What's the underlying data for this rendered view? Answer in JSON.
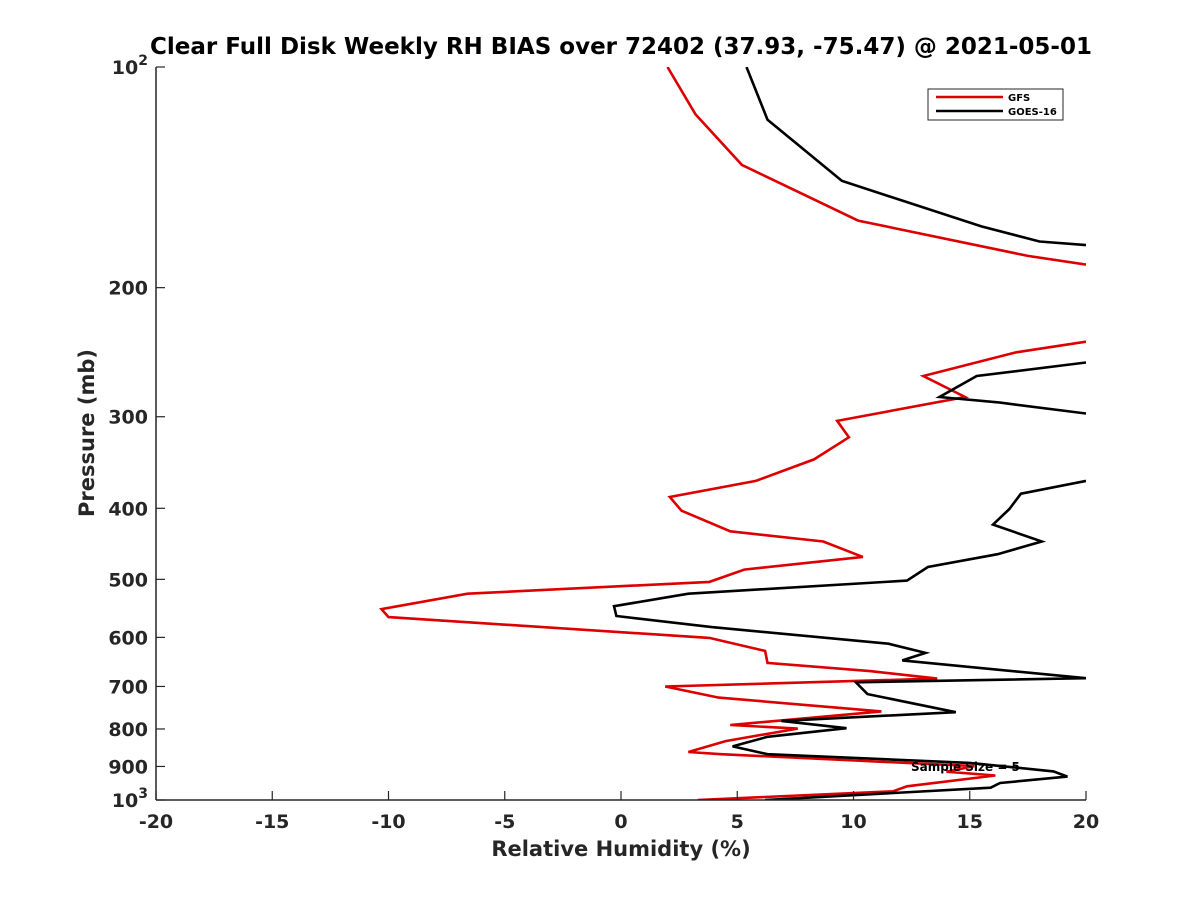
{
  "chart_data": {
    "type": "line",
    "title": "Clear Full Disk Weekly RH BIAS over 72402 (37.93, -75.47) @ 2021-05-01",
    "xlabel": "Relative Humidity (%)",
    "ylabel": "Pressure (mb)",
    "xlim": [
      -20,
      20
    ],
    "ylim": [
      100,
      1000
    ],
    "yscale": "log",
    "y_reversed": true,
    "grid": false,
    "legend_position": "top-right",
    "x_ticks": [
      "-20",
      "-15",
      "-10",
      "-5",
      "0",
      "5",
      "10",
      "15",
      "20"
    ],
    "y_ticks": [
      {
        "value": 100,
        "base": "10",
        "exp": "2"
      },
      {
        "value": 200,
        "label": "200"
      },
      {
        "value": 300,
        "label": "300"
      },
      {
        "value": 400,
        "label": "400"
      },
      {
        "value": 500,
        "label": "500"
      },
      {
        "value": 600,
        "label": "600"
      },
      {
        "value": 700,
        "label": "700"
      },
      {
        "value": 800,
        "label": "800"
      },
      {
        "value": 900,
        "label": "900"
      },
      {
        "value": 1000,
        "base": "10",
        "exp": "3"
      }
    ],
    "annotation": "Sample Size = 5",
    "series": [
      {
        "name": "GFS",
        "color": "#dd0000",
        "points": [
          [
            2.0,
            100
          ],
          [
            3.2,
            116
          ],
          [
            5.2,
            136
          ],
          [
            10.2,
            162
          ],
          [
            17.5,
            181
          ],
          [
            20,
            186
          ],
          [
            null,
            null
          ],
          [
            20,
            237
          ],
          [
            17.0,
            245
          ],
          [
            13.0,
            264
          ],
          [
            14.8,
            282
          ],
          [
            9.3,
            304
          ],
          [
            9.8,
            320
          ],
          [
            8.3,
            343
          ],
          [
            5.8,
            367
          ],
          [
            2.1,
            386
          ],
          [
            2.6,
            403
          ],
          [
            4.7,
            430
          ],
          [
            8.7,
            444
          ],
          [
            10.4,
            466
          ],
          [
            5.3,
            485
          ],
          [
            3.8,
            504
          ],
          [
            -6.6,
            523
          ],
          [
            -10.3,
            549
          ],
          [
            -10.0,
            563
          ],
          [
            3.8,
            601
          ],
          [
            6.2,
            626
          ],
          [
            6.3,
            650
          ],
          [
            10.7,
            667
          ],
          [
            13.6,
            683
          ],
          [
            1.9,
            700
          ],
          [
            4.2,
            725
          ],
          [
            11.2,
            757
          ],
          [
            4.7,
            790
          ],
          [
            7.6,
            799
          ],
          [
            4.5,
            831
          ],
          [
            2.9,
            860
          ],
          [
            4.3,
            866
          ],
          [
            15.2,
            899
          ],
          [
            14.0,
            915
          ],
          [
            16.1,
            926
          ],
          [
            12.3,
            958
          ],
          [
            11.7,
            973
          ],
          [
            3.3,
            1000
          ]
        ]
      },
      {
        "name": "GOES-16",
        "color": "#000000",
        "points": [
          [
            5.4,
            100
          ],
          [
            6.3,
            118
          ],
          [
            9.5,
            143
          ],
          [
            15.5,
            165
          ],
          [
            18.0,
            173
          ],
          [
            20,
            175
          ],
          [
            null,
            null
          ],
          [
            20,
            253
          ],
          [
            15.3,
            264
          ],
          [
            13.7,
            282
          ],
          [
            16.3,
            287
          ],
          [
            20,
            297
          ],
          [
            null,
            null
          ],
          [
            20,
            367
          ],
          [
            17.2,
            382
          ],
          [
            16.7,
            401
          ],
          [
            16.0,
            421
          ],
          [
            18.1,
            444
          ],
          [
            16.2,
            462
          ],
          [
            13.2,
            481
          ],
          [
            12.3,
            502
          ],
          [
            2.9,
            523
          ],
          [
            -0.3,
            544
          ],
          [
            -0.2,
            561
          ],
          [
            3.9,
            581
          ],
          [
            11.5,
            612
          ],
          [
            13.1,
            630
          ],
          [
            12.1,
            645
          ],
          [
            20,
            682
          ],
          [
            10.1,
            691
          ],
          [
            10.6,
            717
          ],
          [
            14.4,
            759
          ],
          [
            6.9,
            780
          ],
          [
            9.7,
            798
          ],
          [
            6.3,
            820
          ],
          [
            4.8,
            845
          ],
          [
            6.3,
            866
          ],
          [
            15.0,
            890
          ],
          [
            18.6,
            914
          ],
          [
            19.2,
            929
          ],
          [
            16.3,
            948
          ],
          [
            15.9,
            962
          ],
          [
            6.2,
            1000
          ]
        ]
      }
    ]
  }
}
